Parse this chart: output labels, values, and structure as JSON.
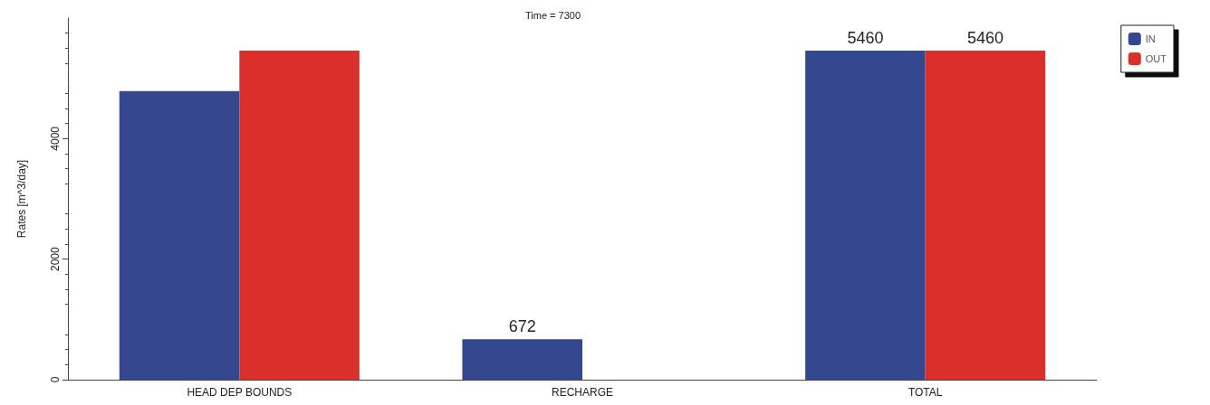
{
  "chart_data": {
    "type": "bar",
    "title": "Time = 7300",
    "ylabel": "Rates [m^3/day]",
    "categories": [
      "HEAD DEP BOUNDS",
      "RECHARGE",
      "TOTAL"
    ],
    "series": [
      {
        "name": "IN",
        "color": "#35488f",
        "values": [
          4790,
          672,
          5460
        ],
        "value_labels": [
          null,
          "672",
          "5460"
        ]
      },
      {
        "name": "OUT",
        "color": "#d9302c",
        "values": [
          5460,
          null,
          5460
        ],
        "value_labels": [
          null,
          null,
          "5460"
        ]
      }
    ],
    "ylim": [
      0,
      6000
    ],
    "yticks": [
      0,
      2000,
      4000
    ],
    "grid": false,
    "legend": "top right"
  }
}
